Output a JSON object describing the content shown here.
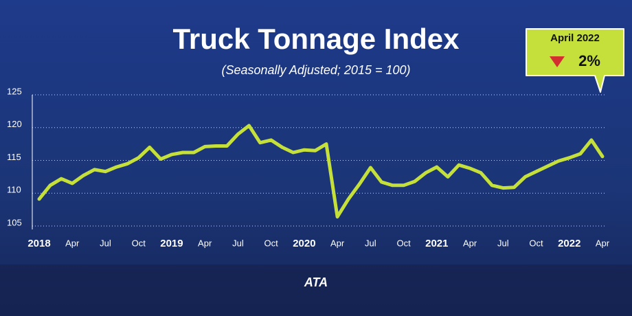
{
  "chart_data": {
    "type": "line",
    "title": "Truck Tonnage Index",
    "subtitle": "(Seasonally Adjusted; 2015 = 100)",
    "categories": [
      "2018",
      null,
      null,
      "Apr",
      null,
      null,
      "Jul",
      null,
      null,
      "Oct",
      null,
      null,
      "2019",
      null,
      null,
      "Apr",
      null,
      null,
      "Jul",
      null,
      null,
      "Oct",
      null,
      null,
      "2020",
      null,
      null,
      "Apr",
      null,
      null,
      "Jul",
      null,
      null,
      "Oct",
      null,
      null,
      "2021",
      null,
      null,
      "Apr",
      null,
      null,
      "Jul",
      null,
      null,
      "Oct",
      null,
      null,
      "2022",
      null,
      null,
      "Apr"
    ],
    "series": [
      {
        "color": "#c5e03a",
        "values": [
          109.1,
          111.2,
          112.2,
          111.5,
          112.7,
          113.6,
          113.3,
          114.0,
          114.5,
          115.4,
          117.0,
          115.2,
          115.9,
          116.2,
          116.2,
          117.1,
          117.2,
          117.2,
          119.0,
          120.3,
          117.7,
          118.1,
          117.0,
          116.2,
          116.6,
          116.5,
          117.5,
          106.4,
          109.1,
          111.4,
          113.9,
          111.7,
          111.2,
          111.2,
          111.8,
          113.1,
          114.0,
          112.5,
          114.3,
          113.8,
          113.1,
          111.2,
          110.8,
          110.9,
          112.5,
          113.3,
          114.1,
          114.9,
          115.4,
          116.0,
          118.1,
          115.6
        ]
      }
    ],
    "ylim": [
      105,
      125
    ],
    "yticks": [
      105,
      110,
      115,
      120,
      125
    ],
    "grid": true,
    "callout": {
      "date": "April 2022",
      "change": "2%",
      "color": "#c5e03a"
    },
    "logo": "ATA"
  }
}
